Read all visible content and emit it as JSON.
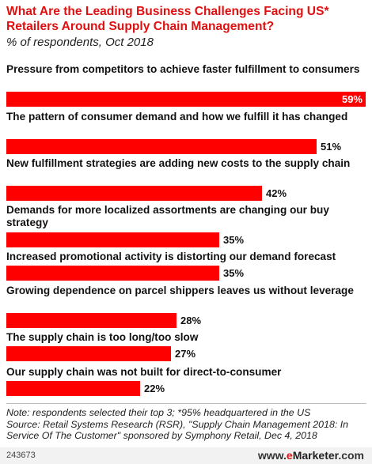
{
  "header": {
    "title": "What Are the Leading Business Challenges Facing US* Retailers Around Supply Chain Management?",
    "subtitle": "% of respondents, Oct 2018"
  },
  "chart_data": {
    "type": "bar",
    "orientation": "horizontal",
    "title": "What Are the Leading Business Challenges Facing US* Retailers Around Supply Chain Management?",
    "subtitle": "% of respondents, Oct 2018",
    "xlabel": "",
    "ylabel": "",
    "xlim": [
      0,
      59
    ],
    "unit": "%",
    "bar_color": "#ff0000",
    "categories": [
      "Pressure from competitors to achieve faster fulfillment to consumers",
      "The pattern of consumer demand and how we fulfill it has changed",
      "New fulfillment strategies are adding new costs to the supply chain",
      "Demands for more localized assortments are changing our buy strategy",
      "Increased promotional activity is distorting our demand forecast",
      "Growing dependence on parcel shippers leaves us without leverage",
      "The supply chain is too long/too slow",
      "Our supply chain was not built for direct-to-consumer"
    ],
    "values": [
      59,
      51,
      42,
      35,
      35,
      28,
      27,
      22
    ],
    "value_labels": [
      "59%",
      "51%",
      "42%",
      "35%",
      "35%",
      "28%",
      "27%",
      "22%"
    ]
  },
  "footer": {
    "note": "Note: respondents selected their top 3; *95% headquartered in the US",
    "source": "Source: Retail Systems Research (RSR), \"Supply Chain Management 2018: In Service Of The Customer\" sponsored by Symphony Retail, Dec 4, 2018",
    "chart_id": "243673",
    "logo_e": "e",
    "logo_rest": "Marketer",
    "logo_suffix": ".com",
    "logo_prefix": "www."
  }
}
